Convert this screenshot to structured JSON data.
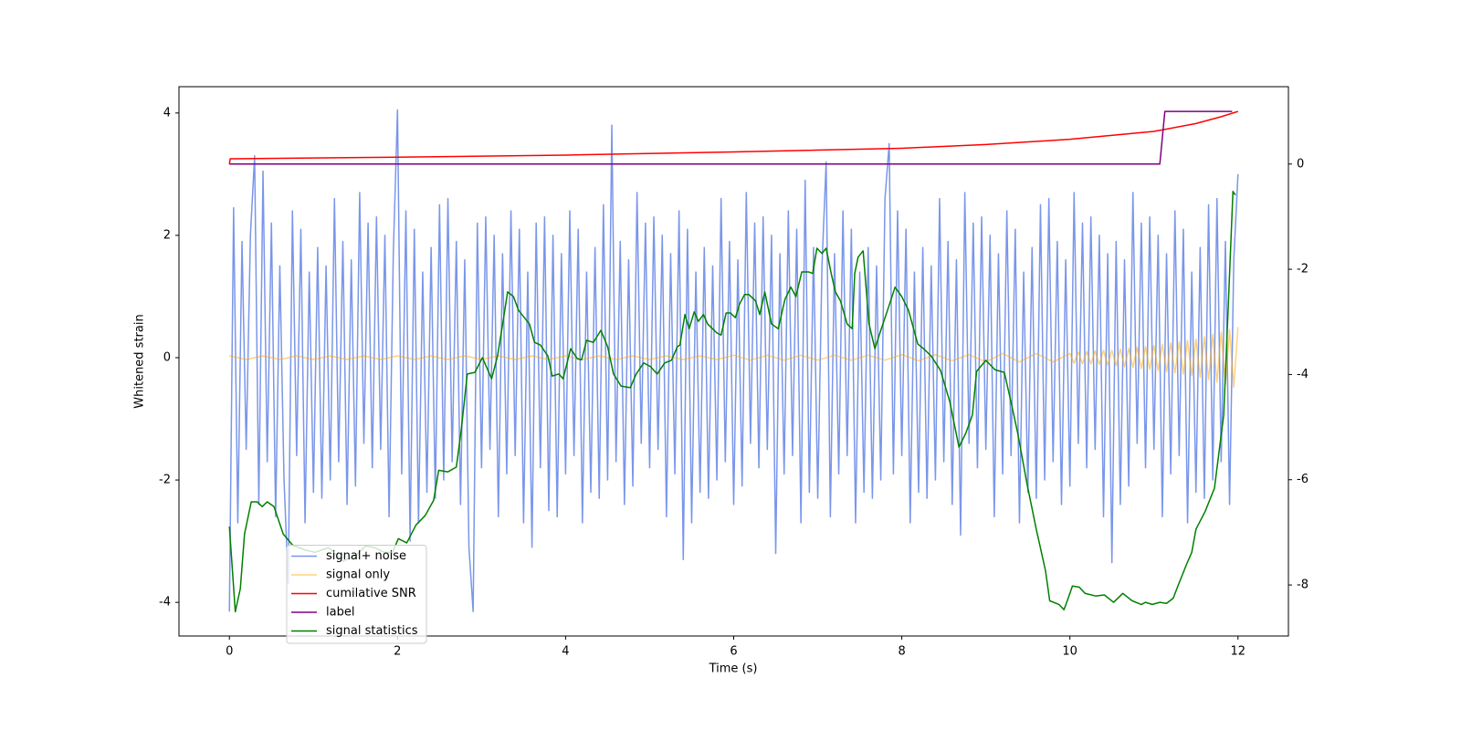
{
  "chart_data": {
    "type": "line",
    "xlabel": "Time (s)",
    "ylabel": "Whitened strain",
    "xlim": [
      -0.6,
      12.6
    ],
    "ylim": [
      -4.55,
      4.43
    ],
    "y2lim": [
      -8.97,
      1.47
    ],
    "xticks": [
      0,
      2,
      4,
      6,
      8,
      10,
      12
    ],
    "yticks": [
      -4,
      -2,
      0,
      2,
      4
    ],
    "y2ticks": [
      -8,
      -6,
      -4,
      -2,
      0
    ],
    "legend": "lower left",
    "series": [
      {
        "name": "signal+ noise",
        "color": "#4169e1",
        "alpha": 0.7,
        "x": [
          0,
          0.05,
          0.1,
          0.15,
          0.2,
          0.25,
          0.3,
          0.35,
          0.4,
          0.45,
          0.5,
          0.55,
          0.6,
          0.65,
          0.7,
          0.75,
          0.8,
          0.85,
          0.9,
          0.95,
          1,
          1.05,
          1.1,
          1.15,
          1.2,
          1.25,
          1.3,
          1.35,
          1.4,
          1.45,
          1.5,
          1.55,
          1.6,
          1.65,
          1.7,
          1.75,
          1.8,
          1.85,
          1.9,
          1.95,
          2,
          2.05,
          2.1,
          2.15,
          2.2,
          2.25,
          2.3,
          2.35,
          2.4,
          2.45,
          2.5,
          2.55,
          2.6,
          2.65,
          2.7,
          2.75,
          2.8,
          2.85,
          2.9,
          2.95,
          3,
          3.05,
          3.1,
          3.15,
          3.2,
          3.25,
          3.3,
          3.35,
          3.4,
          3.45,
          3.5,
          3.55,
          3.6,
          3.65,
          3.7,
          3.75,
          3.8,
          3.85,
          3.9,
          3.95,
          4,
          4.05,
          4.1,
          4.15,
          4.2,
          4.25,
          4.3,
          4.35,
          4.4,
          4.45,
          4.5,
          4.55,
          4.6,
          4.65,
          4.7,
          4.75,
          4.8,
          4.85,
          4.9,
          4.95,
          5,
          5.05,
          5.1,
          5.15,
          5.2,
          5.25,
          5.3,
          5.35,
          5.4,
          5.45,
          5.5,
          5.55,
          5.6,
          5.65,
          5.7,
          5.75,
          5.8,
          5.85,
          5.9,
          5.95,
          6,
          6.05,
          6.1,
          6.15,
          6.2,
          6.25,
          6.3,
          6.35,
          6.4,
          6.45,
          6.5,
          6.55,
          6.6,
          6.65,
          6.7,
          6.75,
          6.8,
          6.85,
          6.9,
          6.95,
          7,
          7.05,
          7.1,
          7.15,
          7.2,
          7.25,
          7.3,
          7.35,
          7.4,
          7.45,
          7.5,
          7.55,
          7.6,
          7.65,
          7.7,
          7.75,
          7.8,
          7.85,
          7.9,
          7.95,
          8,
          8.05,
          8.1,
          8.15,
          8.2,
          8.25,
          8.3,
          8.35,
          8.4,
          8.45,
          8.5,
          8.55,
          8.6,
          8.65,
          8.7,
          8.75,
          8.8,
          8.85,
          8.9,
          8.95,
          9,
          9.05,
          9.1,
          9.15,
          9.2,
          9.25,
          9.3,
          9.35,
          9.4,
          9.45,
          9.5,
          9.55,
          9.6,
          9.65,
          9.7,
          9.75,
          9.8,
          9.85,
          9.9,
          9.95,
          10,
          10.05,
          10.1,
          10.15,
          10.2,
          10.25,
          10.3,
          10.35,
          10.4,
          10.45,
          10.5,
          10.55,
          10.6,
          10.65,
          10.7,
          10.75,
          10.8,
          10.85,
          10.9,
          10.95,
          11,
          11.05,
          11.1,
          11.15,
          11.2,
          11.25,
          11.3,
          11.35,
          11.4,
          11.45,
          11.5,
          11.55,
          11.6,
          11.65,
          11.7,
          11.75,
          11.8,
          11.85,
          11.9,
          11.95,
          12
        ],
        "values": [
          -4.15,
          2.45,
          -2.7,
          1.9,
          -1.5,
          2.0,
          3.3,
          -2.4,
          3.05,
          -1.7,
          2.2,
          -2.6,
          1.5,
          -2.0,
          -3.7,
          2.4,
          -1.6,
          2.1,
          -2.7,
          1.4,
          -2.2,
          1.8,
          -2.3,
          1.5,
          -2.0,
          2.6,
          -1.7,
          1.9,
          -2.4,
          1.6,
          -2.1,
          2.7,
          -1.4,
          2.2,
          -1.8,
          2.3,
          -1.5,
          2.0,
          -2.6,
          1.7,
          4.05,
          -1.9,
          2.4,
          -3.0,
          2.1,
          -2.7,
          1.4,
          -2.2,
          1.8,
          -2.3,
          2.5,
          -2.0,
          2.6,
          -1.7,
          1.9,
          -2.4,
          1.6,
          -3.1,
          -4.15,
          2.2,
          -1.8,
          2.3,
          -1.5,
          2.0,
          -2.6,
          1.7,
          -1.9,
          2.4,
          -1.6,
          2.1,
          -2.7,
          1.4,
          -3.1,
          2.2,
          -1.8,
          2.3,
          -2.5,
          2.0,
          -2.6,
          1.7,
          -1.9,
          2.4,
          -1.6,
          2.1,
          -2.7,
          1.4,
          -2.2,
          1.8,
          -2.3,
          2.5,
          -2.0,
          3.8,
          -1.7,
          1.9,
          -2.4,
          1.6,
          -2.1,
          2.7,
          -1.4,
          2.2,
          -1.8,
          2.3,
          -1.5,
          2.0,
          -2.6,
          1.7,
          -1.9,
          2.4,
          -3.3,
          2.1,
          -2.7,
          1.4,
          -2.2,
          1.8,
          -2.3,
          1.5,
          -2.0,
          2.6,
          -1.7,
          1.9,
          -2.4,
          1.6,
          -2.1,
          2.7,
          -1.4,
          2.2,
          -1.8,
          2.3,
          -1.5,
          2.0,
          -3.2,
          1.7,
          -1.9,
          2.4,
          -1.6,
          2.1,
          -2.7,
          2.9,
          -2.2,
          1.8,
          -2.3,
          1.5,
          3.2,
          -2.6,
          1.7,
          -1.9,
          2.4,
          -1.6,
          2.1,
          -2.7,
          1.4,
          -2.2,
          1.8,
          -2.3,
          1.5,
          -2.0,
          2.6,
          3.5,
          -1.9,
          2.4,
          -1.6,
          2.1,
          -2.7,
          1.4,
          -2.2,
          1.8,
          -2.3,
          1.5,
          -2.0,
          2.6,
          -1.7,
          1.9,
          -2.4,
          1.6,
          -2.9,
          2.7,
          -1.4,
          2.2,
          -1.8,
          2.3,
          -1.5,
          2.0,
          -2.6,
          1.7,
          -1.9,
          2.4,
          -1.6,
          2.1,
          -2.7,
          1.4,
          -2.2,
          1.8,
          -2.3,
          2.5,
          -2.0,
          2.6,
          -1.7,
          1.9,
          -2.4,
          1.6,
          -2.1,
          2.7,
          -1.4,
          2.2,
          -1.8,
          2.3,
          -1.5,
          2.0,
          -2.6,
          1.7,
          -3.35,
          1.9,
          -2.4,
          1.6,
          -2.1,
          2.7,
          -1.4,
          2.2,
          -1.8,
          2.3,
          -1.5,
          2.0,
          -2.6,
          1.7,
          -1.9,
          2.4,
          -1.6,
          2.1,
          -2.7,
          1.4,
          -2.2,
          1.8,
          -2.3,
          2.5,
          -2.0,
          2.6,
          -1.7,
          1.9,
          -2.4,
          1.6,
          3.0
        ]
      },
      {
        "name": "signal only",
        "color": "#ffa500",
        "alpha": 0.5,
        "x": [
          0,
          0.2,
          0.4,
          0.6,
          0.8,
          1,
          1.2,
          1.4,
          1.6,
          1.8,
          2,
          2.2,
          2.4,
          2.6,
          2.8,
          3,
          3.2,
          3.4,
          3.6,
          3.8,
          4,
          4.2,
          4.4,
          4.6,
          4.8,
          5,
          5.2,
          5.4,
          5.6,
          5.8,
          6,
          6.2,
          6.4,
          6.6,
          6.8,
          7,
          7.2,
          7.4,
          7.6,
          7.8,
          8,
          8.2,
          8.4,
          8.6,
          8.8,
          9,
          9.2,
          9.4,
          9.6,
          9.8,
          10,
          10.05,
          10.1,
          10.15,
          10.2,
          10.25,
          10.3,
          10.35,
          10.4,
          10.45,
          10.5,
          10.55,
          10.6,
          10.65,
          10.7,
          10.75,
          10.8,
          10.85,
          10.9,
          10.95,
          11,
          11.05,
          11.1,
          11.15,
          11.2,
          11.25,
          11.3,
          11.35,
          11.4,
          11.45,
          11.5,
          11.55,
          11.6,
          11.65,
          11.7,
          11.75,
          11.8,
          11.85,
          11.9,
          11.95,
          12
        ],
        "values": [
          0.03,
          -0.03,
          0.03,
          -0.03,
          0.03,
          -0.03,
          0.03,
          -0.03,
          0.03,
          -0.03,
          0.03,
          -0.03,
          0.03,
          -0.03,
          0.03,
          -0.03,
          0.03,
          -0.03,
          0.03,
          -0.03,
          0.03,
          -0.03,
          0.03,
          -0.03,
          0.03,
          -0.03,
          0.03,
          -0.03,
          0.03,
          -0.03,
          0.04,
          -0.04,
          0.04,
          -0.04,
          0.04,
          -0.04,
          0.04,
          -0.04,
          0.04,
          -0.04,
          0.05,
          -0.05,
          0.05,
          -0.05,
          0.05,
          -0.07,
          0.07,
          -0.07,
          0.07,
          -0.07,
          0.07,
          -0.09,
          0.09,
          -0.1,
          0.1,
          -0.1,
          0.11,
          -0.11,
          0.12,
          -0.12,
          0.12,
          -0.13,
          0.14,
          -0.15,
          0.15,
          -0.16,
          0.17,
          -0.18,
          0.18,
          -0.19,
          0.2,
          -0.21,
          0.22,
          -0.23,
          0.24,
          -0.25,
          0.26,
          -0.27,
          0.28,
          -0.29,
          0.3,
          -0.32,
          0.34,
          -0.36,
          0.38,
          -0.4,
          0.42,
          -0.44,
          0.46,
          -0.48,
          0.5
        ]
      },
      {
        "name": "cumilative SNR",
        "color": "#ff0000",
        "axis": "y2",
        "x": [
          0,
          0.01,
          2,
          4,
          6,
          8,
          9,
          10,
          11,
          11.5,
          11.8,
          12
        ],
        "values": [
          0,
          0.1,
          0.13,
          0.17,
          0.23,
          0.3,
          0.37,
          0.47,
          0.62,
          0.77,
          0.9,
          1.0
        ]
      },
      {
        "name": "label",
        "color": "#800080",
        "axis": "y2",
        "x": [
          0,
          11.07,
          11.13,
          11.93
        ],
        "values": [
          0,
          0,
          1,
          1
        ]
      },
      {
        "name": "signal statistics",
        "color": "#008000",
        "axis": "y2",
        "x": [
          0,
          0.07,
          0.13,
          0.18,
          0.26,
          0.33,
          0.39,
          0.45,
          0.53,
          0.64,
          0.75,
          0.91,
          1.02,
          1.18,
          1.35,
          1.51,
          1.62,
          1.73,
          1.84,
          1.94,
          2.01,
          2.11,
          2.22,
          2.33,
          2.43,
          2.49,
          2.6,
          2.7,
          2.76,
          2.83,
          2.92,
          3.01,
          3.12,
          3.19,
          3.26,
          3.31,
          3.38,
          3.44,
          3.57,
          3.63,
          3.7,
          3.79,
          3.84,
          3.92,
          3.97,
          4.06,
          4.14,
          4.19,
          4.25,
          4.33,
          4.42,
          4.5,
          4.57,
          4.66,
          4.77,
          4.84,
          4.93,
          5.01,
          5.09,
          5.18,
          5.26,
          5.33,
          5.36,
          5.42,
          5.47,
          5.53,
          5.58,
          5.64,
          5.69,
          5.8,
          5.85,
          5.91,
          5.96,
          6.02,
          6.07,
          6.13,
          6.18,
          6.26,
          6.31,
          6.37,
          6.45,
          6.53,
          6.61,
          6.68,
          6.74,
          6.81,
          6.89,
          6.94,
          6.99,
          7.05,
          7.1,
          7.16,
          7.21,
          7.27,
          7.35,
          7.41,
          7.44,
          7.48,
          7.54,
          7.61,
          7.68,
          7.75,
          7.83,
          7.92,
          8.0,
          8.08,
          8.19,
          8.26,
          8.35,
          8.46,
          8.57,
          8.68,
          8.76,
          8.84,
          8.89,
          9.0,
          9.11,
          9.22,
          9.31,
          9.38,
          9.49,
          9.6,
          9.71,
          9.76,
          9.87,
          9.93,
          9.98,
          10.03,
          10.11,
          10.18,
          10.31,
          10.41,
          10.52,
          10.63,
          10.74,
          10.85,
          10.9,
          10.98,
          11.07,
          11.15,
          11.23,
          11.28,
          11.39,
          11.45,
          11.5,
          11.61,
          11.72,
          11.83,
          11.88,
          11.94,
          11.97
        ],
        "values": [
          -6.89,
          -8.51,
          -8.07,
          -7.03,
          -6.42,
          -6.42,
          -6.51,
          -6.42,
          -6.51,
          -7.03,
          -7.24,
          -7.34,
          -7.38,
          -7.29,
          -7.55,
          -7.43,
          -7.26,
          -7.29,
          -7.38,
          -7.38,
          -7.12,
          -7.2,
          -6.86,
          -6.68,
          -6.39,
          -5.82,
          -5.85,
          -5.76,
          -5.03,
          -3.99,
          -3.96,
          -3.68,
          -4.08,
          -3.65,
          -2.95,
          -2.43,
          -2.52,
          -2.78,
          -3.04,
          -3.39,
          -3.44,
          -3.65,
          -4.03,
          -3.99,
          -4.08,
          -3.51,
          -3.7,
          -3.72,
          -3.35,
          -3.39,
          -3.16,
          -3.47,
          -3.99,
          -4.22,
          -4.25,
          -3.99,
          -3.78,
          -3.85,
          -3.99,
          -3.78,
          -3.73,
          -3.47,
          -3.44,
          -2.86,
          -3.13,
          -2.81,
          -2.99,
          -2.86,
          -3.04,
          -3.21,
          -3.25,
          -2.83,
          -2.83,
          -2.92,
          -2.66,
          -2.48,
          -2.48,
          -2.6,
          -2.86,
          -2.43,
          -3.04,
          -3.13,
          -2.57,
          -2.34,
          -2.52,
          -2.05,
          -2.05,
          -2.08,
          -1.6,
          -1.7,
          -1.6,
          -2.08,
          -2.43,
          -2.6,
          -3.04,
          -3.13,
          -2.08,
          -1.77,
          -1.65,
          -3.04,
          -3.51,
          -3.16,
          -2.78,
          -2.34,
          -2.52,
          -2.78,
          -3.42,
          -3.51,
          -3.65,
          -3.92,
          -4.51,
          -5.38,
          -5.12,
          -4.77,
          -3.94,
          -3.73,
          -3.91,
          -3.96,
          -4.6,
          -5.12,
          -6.08,
          -6.94,
          -7.73,
          -8.3,
          -8.37,
          -8.47,
          -8.25,
          -8.02,
          -8.04,
          -8.16,
          -8.21,
          -8.19,
          -8.33,
          -8.16,
          -8.3,
          -8.37,
          -8.33,
          -8.37,
          -8.33,
          -8.35,
          -8.25,
          -8.04,
          -7.6,
          -7.38,
          -6.94,
          -6.6,
          -6.16,
          -4.77,
          -2.86,
          -0.52,
          -0.59
        ]
      }
    ]
  }
}
